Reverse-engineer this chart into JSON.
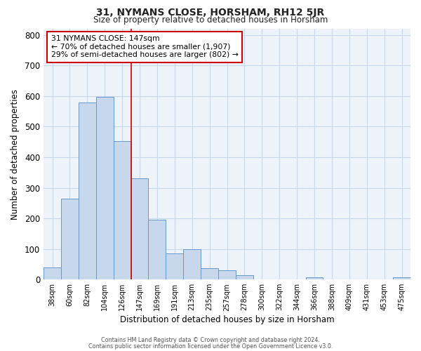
{
  "title": "31, NYMANS CLOSE, HORSHAM, RH12 5JR",
  "subtitle": "Size of property relative to detached houses in Horsham",
  "xlabel": "Distribution of detached houses by size in Horsham",
  "ylabel": "Number of detached properties",
  "bar_labels": [
    "38sqm",
    "60sqm",
    "82sqm",
    "104sqm",
    "126sqm",
    "147sqm",
    "169sqm",
    "191sqm",
    "213sqm",
    "235sqm",
    "257sqm",
    "278sqm",
    "300sqm",
    "322sqm",
    "344sqm",
    "366sqm",
    "388sqm",
    "409sqm",
    "431sqm",
    "453sqm",
    "475sqm"
  ],
  "bar_values": [
    40,
    265,
    580,
    597,
    452,
    330,
    195,
    85,
    100,
    37,
    31,
    14,
    0,
    0,
    0,
    8,
    0,
    0,
    0,
    0,
    7
  ],
  "bar_color": "#c8d8ec",
  "bar_edge_color": "#6699cc",
  "highlight_index": 5,
  "highlight_line_color": "#cc0000",
  "ylim": [
    0,
    820
  ],
  "yticks": [
    0,
    100,
    200,
    300,
    400,
    500,
    600,
    700,
    800
  ],
  "annotation_title": "31 NYMANS CLOSE: 147sqm",
  "annotation_line1": "← 70% of detached houses are smaller (1,907)",
  "annotation_line2": "29% of semi-detached houses are larger (802) →",
  "annotation_box_color": "#cc0000",
  "footer_line1": "Contains HM Land Registry data © Crown copyright and database right 2024.",
  "footer_line2": "Contains public sector information licensed under the Open Government Licence v3.0.",
  "background_color": "#ffffff",
  "grid_color": "#c8d8ec"
}
